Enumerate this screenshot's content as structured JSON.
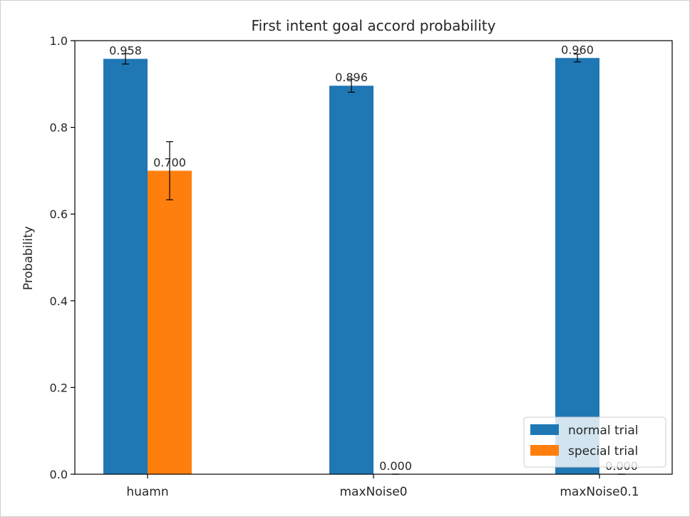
{
  "chart_data": {
    "type": "bar",
    "title": "First intent goal accord probability",
    "xlabel": "",
    "ylabel": "Probability",
    "categories": [
      "huamn",
      "maxNoise0",
      "maxNoise0.1"
    ],
    "ylim": [
      0,
      1.0
    ],
    "yticks": [
      0.0,
      0.2,
      0.4,
      0.6,
      0.8,
      1.0
    ],
    "ytick_labels": [
      "0.0",
      "0.2",
      "0.4",
      "0.6",
      "0.8",
      "1.0"
    ],
    "grid": false,
    "legend_position": "bottom-right",
    "series": [
      {
        "name": "normal trial",
        "color": "#1f77b4",
        "values": [
          0.958,
          0.896,
          0.96
        ],
        "errors": [
          0.012,
          0.015,
          0.009
        ],
        "labels": [
          "0.958",
          "0.896",
          "0.960"
        ]
      },
      {
        "name": "special trial",
        "color": "#ff7f0e",
        "values": [
          0.7,
          0.0,
          0.0
        ],
        "errors": [
          0.067,
          0.0,
          0.0
        ],
        "labels": [
          "0.700",
          "0.000",
          "0.000"
        ]
      }
    ]
  }
}
